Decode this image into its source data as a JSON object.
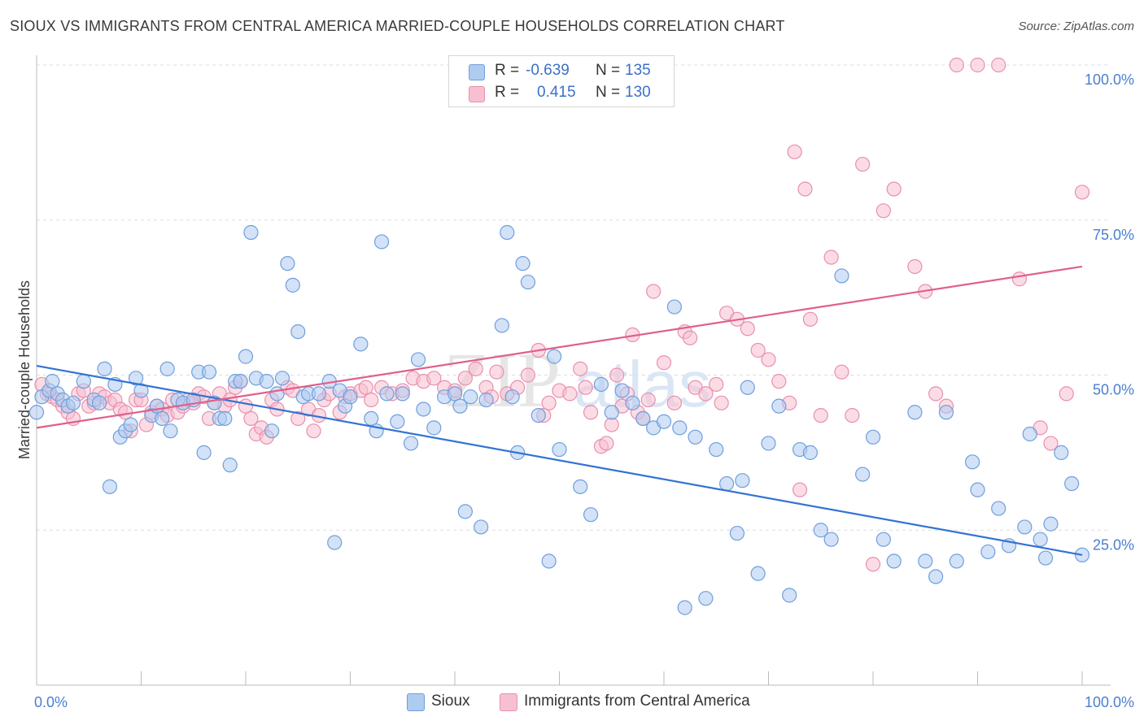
{
  "header": {
    "title": "SIOUX VS IMMIGRANTS FROM CENTRAL AMERICA MARRIED-COUPLE HOUSEHOLDS CORRELATION CHART",
    "source": "Source: ZipAtlas.com"
  },
  "colors": {
    "sioux_fill": "#aecbf0",
    "sioux_stroke": "#6f9fdc",
    "sioux_line": "#3373d2",
    "ica_fill": "#f7c0d0",
    "ica_stroke": "#e98fae",
    "ica_line": "#e0608a",
    "tick_text": "#4a7fd0",
    "grid": "#dddddd"
  },
  "legend": {
    "r_label": "R =",
    "n_label": "N =",
    "rows": [
      {
        "r": "-0.639",
        "n": "135"
      },
      {
        "r": "0.415",
        "n": "130"
      }
    ]
  },
  "watermark": {
    "zip": "ZIP",
    "atlas": "atlas"
  },
  "chart_data": {
    "type": "scatter",
    "ylabel": "Married-couple Households",
    "xlim": [
      0,
      100
    ],
    "ylim": [
      0,
      100
    ],
    "x_tick_labels": [
      "0.0%",
      "100.0%"
    ],
    "y_ticks": [
      {
        "value": 25,
        "label": "25.0%"
      },
      {
        "value": 50,
        "label": "50.0%"
      },
      {
        "value": 75,
        "label": "75.0%"
      },
      {
        "value": 100,
        "label": "100.0%"
      }
    ],
    "legend_position": "bottom-center",
    "series": [
      {
        "name": "Sioux",
        "trend": {
          "x": [
            0,
            100
          ],
          "y": [
            51.5,
            21.0
          ]
        },
        "points": [
          [
            0,
            44
          ],
          [
            0.5,
            46.5
          ],
          [
            1.2,
            47.5
          ],
          [
            1.5,
            49
          ],
          [
            2,
            47
          ],
          [
            2.5,
            46
          ],
          [
            3,
            45
          ],
          [
            3.5,
            45.5
          ],
          [
            4.5,
            49
          ],
          [
            5.5,
            46
          ],
          [
            6,
            45.5
          ],
          [
            6.5,
            51
          ],
          [
            7,
            32
          ],
          [
            7.5,
            48.5
          ],
          [
            8,
            40
          ],
          [
            8.5,
            41
          ],
          [
            9,
            42
          ],
          [
            9.5,
            49.5
          ],
          [
            10,
            47.5
          ],
          [
            11,
            43.5
          ],
          [
            11.5,
            45
          ],
          [
            12,
            43
          ],
          [
            12.5,
            51
          ],
          [
            12.8,
            41
          ],
          [
            13.5,
            46
          ],
          [
            14,
            45.5
          ],
          [
            15,
            46
          ],
          [
            15.5,
            50.5
          ],
          [
            16,
            37.5
          ],
          [
            16.5,
            50.5
          ],
          [
            17,
            45.5
          ],
          [
            17.5,
            43
          ],
          [
            18,
            43
          ],
          [
            18.5,
            35.5
          ],
          [
            19,
            49
          ],
          [
            19.5,
            49
          ],
          [
            20,
            53
          ],
          [
            20.5,
            73
          ],
          [
            21,
            49.5
          ],
          [
            22,
            49
          ],
          [
            22.5,
            41
          ],
          [
            23,
            47
          ],
          [
            23.5,
            49.5
          ],
          [
            24,
            68
          ],
          [
            24.5,
            64.5
          ],
          [
            25,
            57
          ],
          [
            25.5,
            46.5
          ],
          [
            26,
            47
          ],
          [
            27,
            47
          ],
          [
            28,
            49
          ],
          [
            28.5,
            23
          ],
          [
            29,
            47.5
          ],
          [
            29.5,
            45
          ],
          [
            30,
            46.5
          ],
          [
            31,
            55
          ],
          [
            32,
            43
          ],
          [
            32.5,
            41
          ],
          [
            33,
            71.5
          ],
          [
            33.5,
            47
          ],
          [
            34.5,
            42.5
          ],
          [
            35,
            47
          ],
          [
            35.8,
            39
          ],
          [
            36.5,
            52.5
          ],
          [
            37,
            44.5
          ],
          [
            38,
            41.5
          ],
          [
            39,
            46.5
          ],
          [
            40,
            47
          ],
          [
            40.5,
            45
          ],
          [
            41,
            28
          ],
          [
            41.5,
            46.5
          ],
          [
            42.5,
            25.5
          ],
          [
            43,
            46
          ],
          [
            44.5,
            58
          ],
          [
            45,
            73
          ],
          [
            45.5,
            46.5
          ],
          [
            46,
            37.5
          ],
          [
            46.5,
            68
          ],
          [
            47,
            65
          ],
          [
            48,
            43.5
          ],
          [
            49,
            20
          ],
          [
            49.5,
            53
          ],
          [
            50,
            38
          ],
          [
            52,
            32
          ],
          [
            53,
            27.5
          ],
          [
            54,
            48.5
          ],
          [
            55,
            44
          ],
          [
            56,
            47.5
          ],
          [
            57,
            45.5
          ],
          [
            58,
            43
          ],
          [
            59,
            41.5
          ],
          [
            60,
            42.5
          ],
          [
            61,
            61
          ],
          [
            61.5,
            41.5
          ],
          [
            62,
            12.5
          ],
          [
            63,
            40
          ],
          [
            64,
            14
          ],
          [
            65,
            38
          ],
          [
            66,
            32.5
          ],
          [
            67,
            24.5
          ],
          [
            67.5,
            33
          ],
          [
            68,
            48
          ],
          [
            69,
            18
          ],
          [
            70,
            39
          ],
          [
            71,
            45
          ],
          [
            72,
            14.5
          ],
          [
            73,
            38
          ],
          [
            74,
            37.5
          ],
          [
            75,
            25
          ],
          [
            76,
            23.5
          ],
          [
            77,
            66
          ],
          [
            79,
            34
          ],
          [
            80,
            40
          ],
          [
            81,
            23.5
          ],
          [
            82,
            20
          ],
          [
            84,
            44
          ],
          [
            85,
            20
          ],
          [
            86,
            17.5
          ],
          [
            87,
            44
          ],
          [
            88,
            20
          ],
          [
            89.5,
            36
          ],
          [
            90,
            31.5
          ],
          [
            91,
            21.5
          ],
          [
            92,
            28.5
          ],
          [
            93,
            22.5
          ],
          [
            94.5,
            25.5
          ],
          [
            95,
            40.5
          ],
          [
            96,
            23.5
          ],
          [
            96.5,
            20.5
          ],
          [
            97,
            26
          ],
          [
            98,
            37.5
          ],
          [
            99,
            32.5
          ],
          [
            100,
            21
          ]
        ]
      },
      {
        "name": "Immigrants from Central America",
        "trend": {
          "x": [
            0,
            100
          ],
          "y": [
            41.5,
            67.5
          ]
        },
        "points": [
          [
            0.5,
            48.5
          ],
          [
            1,
            47
          ],
          [
            1.5,
            46.5
          ],
          [
            2,
            46
          ],
          [
            2.5,
            45
          ],
          [
            3,
            44
          ],
          [
            3.5,
            43
          ],
          [
            4,
            47
          ],
          [
            4.5,
            47.5
          ],
          [
            5,
            45
          ],
          [
            5.5,
            45.5
          ],
          [
            6,
            47
          ],
          [
            6.5,
            46.5
          ],
          [
            7,
            45.5
          ],
          [
            7.5,
            46
          ],
          [
            8,
            44.5
          ],
          [
            8.5,
            44
          ],
          [
            9,
            41
          ],
          [
            9.5,
            46
          ],
          [
            10,
            46
          ],
          [
            10.5,
            42
          ],
          [
            11,
            44
          ],
          [
            11.5,
            45
          ],
          [
            12,
            44.5
          ],
          [
            12.5,
            43.5
          ],
          [
            13,
            46
          ],
          [
            13.5,
            44
          ],
          [
            14,
            45
          ],
          [
            14.5,
            46
          ],
          [
            15,
            45.5
          ],
          [
            15.5,
            47
          ],
          [
            16,
            46.5
          ],
          [
            16.5,
            43
          ],
          [
            17,
            45.5
          ],
          [
            17.5,
            47
          ],
          [
            18,
            45
          ],
          [
            18.5,
            46
          ],
          [
            19,
            48
          ],
          [
            19.5,
            49
          ],
          [
            20,
            45
          ],
          [
            20.5,
            43
          ],
          [
            21,
            40.5
          ],
          [
            21.5,
            41.5
          ],
          [
            22,
            40
          ],
          [
            22.5,
            46
          ],
          [
            23,
            44.5
          ],
          [
            24,
            48
          ],
          [
            24.5,
            47.5
          ],
          [
            25,
            43
          ],
          [
            26,
            44.5
          ],
          [
            26.5,
            41
          ],
          [
            27,
            43.5
          ],
          [
            27.5,
            46
          ],
          [
            28,
            47
          ],
          [
            29,
            44
          ],
          [
            29.5,
            46.5
          ],
          [
            30,
            47
          ],
          [
            31,
            47.5
          ],
          [
            31.5,
            48
          ],
          [
            32,
            46
          ],
          [
            33,
            48
          ],
          [
            34,
            47
          ],
          [
            35,
            47.5
          ],
          [
            36,
            49.5
          ],
          [
            37,
            49
          ],
          [
            38,
            49.5
          ],
          [
            39,
            48
          ],
          [
            40,
            47.5
          ],
          [
            41,
            49.5
          ],
          [
            42,
            51
          ],
          [
            43,
            48
          ],
          [
            43.5,
            46.5
          ],
          [
            44,
            50.5
          ],
          [
            45,
            47
          ],
          [
            46,
            48
          ],
          [
            47,
            50
          ],
          [
            48,
            54
          ],
          [
            48.5,
            43.5
          ],
          [
            49,
            45.5
          ],
          [
            50,
            47.5
          ],
          [
            51,
            47
          ],
          [
            52,
            51
          ],
          [
            52.5,
            48
          ],
          [
            53,
            44
          ],
          [
            54,
            38.5
          ],
          [
            54.5,
            39
          ],
          [
            55,
            42
          ],
          [
            55.5,
            50
          ],
          [
            56,
            45
          ],
          [
            56.5,
            47
          ],
          [
            57,
            56.5
          ],
          [
            57.5,
            44
          ],
          [
            58,
            43
          ],
          [
            58.5,
            46
          ],
          [
            59,
            63.5
          ],
          [
            60,
            52
          ],
          [
            61,
            45.5
          ],
          [
            62,
            57
          ],
          [
            62.5,
            56
          ],
          [
            63,
            48
          ],
          [
            64,
            47
          ],
          [
            65,
            48.5
          ],
          [
            65.5,
            45.5
          ],
          [
            66,
            60
          ],
          [
            67,
            59
          ],
          [
            68,
            57.5
          ],
          [
            69,
            54
          ],
          [
            70,
            52.5
          ],
          [
            71,
            49
          ],
          [
            72,
            45.5
          ],
          [
            72.5,
            86
          ],
          [
            73,
            31.5
          ],
          [
            73.5,
            80
          ],
          [
            74,
            59
          ],
          [
            75,
            43.5
          ],
          [
            76,
            69
          ],
          [
            77,
            50.5
          ],
          [
            78,
            43.5
          ],
          [
            79,
            84
          ],
          [
            80,
            19.5
          ],
          [
            81,
            76.5
          ],
          [
            82,
            80
          ],
          [
            84,
            67.5
          ],
          [
            85,
            63.5
          ],
          [
            86,
            47
          ],
          [
            87,
            45
          ],
          [
            88,
            100
          ],
          [
            90,
            100
          ],
          [
            92,
            100
          ],
          [
            94,
            65.5
          ],
          [
            96,
            41.5
          ],
          [
            97,
            39
          ],
          [
            98.5,
            47
          ],
          [
            100,
            79.5
          ]
        ]
      }
    ]
  }
}
